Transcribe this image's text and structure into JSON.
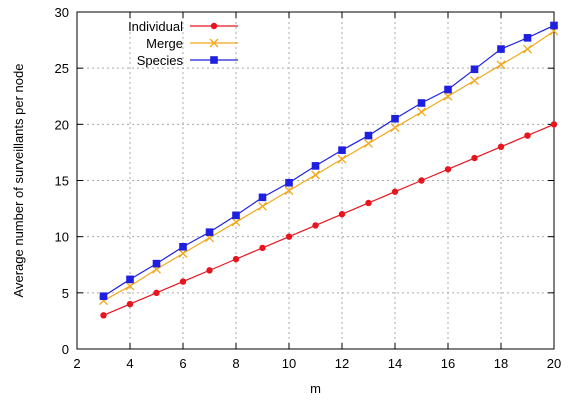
{
  "chart_data": {
    "type": "line",
    "title": "",
    "xlabel": "m",
    "ylabel": "Average number of surveillants per node",
    "xlim": [
      2,
      20
    ],
    "ylim": [
      0,
      30
    ],
    "xticks": [
      2,
      4,
      6,
      8,
      10,
      12,
      14,
      16,
      18,
      20
    ],
    "yticks": [
      0,
      5,
      10,
      15,
      20,
      25,
      30
    ],
    "grid": "dashed",
    "legend_position": "top-left",
    "x": [
      3,
      4,
      5,
      6,
      7,
      8,
      9,
      10,
      11,
      12,
      13,
      14,
      15,
      16,
      17,
      18,
      19,
      20
    ],
    "series": [
      {
        "name": "Individual",
        "color": "#e8141e",
        "marker": "circle",
        "values": [
          3,
          4,
          5,
          6,
          7,
          8,
          9,
          10,
          11,
          12,
          13,
          14,
          15,
          16,
          17,
          18,
          19,
          20
        ]
      },
      {
        "name": "Merge",
        "color": "#f2a81d",
        "marker": "cross",
        "values": [
          4.3,
          5.6,
          7.1,
          8.5,
          9.9,
          11.3,
          12.7,
          14.1,
          15.5,
          16.9,
          18.3,
          19.7,
          21.1,
          22.5,
          23.9,
          25.3,
          26.7,
          28.3
        ]
      },
      {
        "name": "Species",
        "color": "#1f1fe0",
        "marker": "square",
        "values": [
          4.7,
          6.2,
          7.6,
          9.1,
          10.4,
          11.9,
          13.5,
          14.8,
          16.3,
          17.7,
          19.0,
          20.5,
          21.9,
          23.1,
          24.9,
          26.7,
          27.7,
          28.8
        ]
      }
    ]
  }
}
